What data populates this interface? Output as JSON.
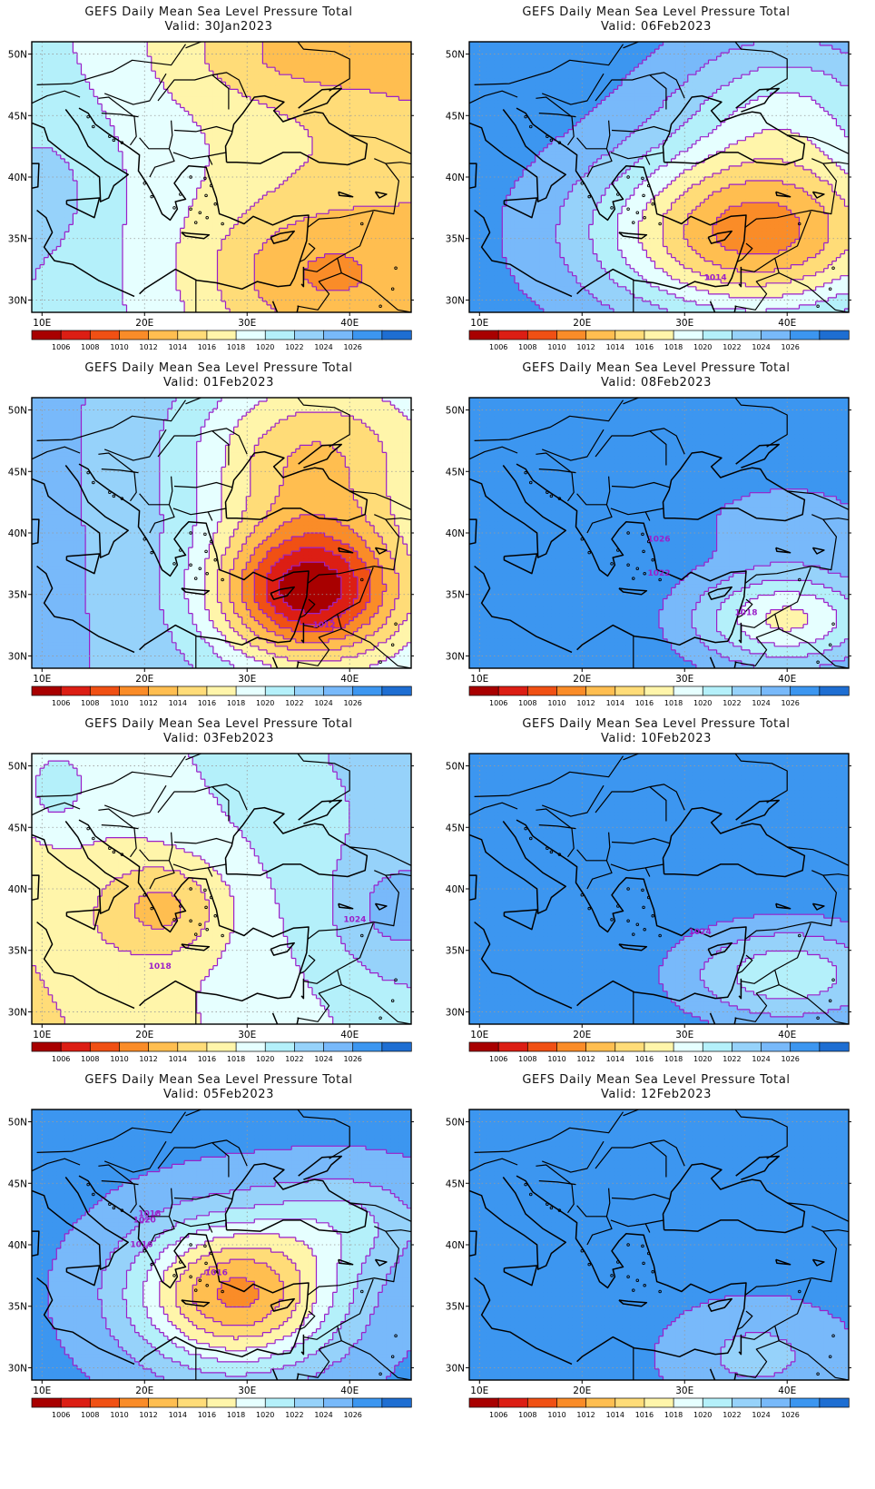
{
  "figure": {
    "title": "GEFS Daily Mean Sea Level Pressure Total",
    "lat_ticks": [
      50,
      45,
      40,
      35,
      30
    ],
    "lat_tick_labels": [
      "50N",
      "45N",
      "40N",
      "35N",
      "30N"
    ],
    "lon_ticks": [
      10,
      20,
      30,
      40
    ],
    "lon_tick_labels": [
      "10E",
      "20E",
      "30E",
      "40E"
    ],
    "lon_range": [
      9,
      46
    ],
    "lat_range": [
      29,
      51
    ],
    "grid": "dotted",
    "colorbar": {
      "boundaries": [
        "1006",
        "1008",
        "1010",
        "1012",
        "1014",
        "1016",
        "1018",
        "1020",
        "1022",
        "1024",
        "1026"
      ],
      "colors": [
        "#a80000",
        "#dc1e14",
        "#f05014",
        "#fa8c28",
        "#ffbe50",
        "#ffdc78",
        "#fff5aa",
        "#e6ffff",
        "#b4f0fa",
        "#96d2fa",
        "#78b9fa",
        "#3c96f0",
        "#1e6ed2"
      ]
    },
    "contour_line_color": "#9b1fc9",
    "coast_color": "#000000"
  },
  "panels": [
    {
      "valid": "Valid: 30Jan2023",
      "contour_labels": [],
      "field": {
        "base": 1018.5,
        "lon_gradient": -0.18,
        "lon_ref": 25,
        "lat_gradient": -0.05,
        "lat_ref": 40,
        "centers": [
          {
            "lon": 36,
            "lat": 32,
            "amp": -5,
            "rx": 11,
            "ry": 6
          },
          {
            "lon": 34,
            "lat": 50,
            "amp": -3,
            "rx": 12,
            "ry": 4
          },
          {
            "lon": 12,
            "lat": 39,
            "amp": 1.5,
            "rx": 5,
            "ry": 6
          }
        ]
      }
    },
    {
      "valid": "Valid: 06Feb2023",
      "contour_labels": [
        {
          "text": "1014",
          "lon": 33.0,
          "lat": 31.8
        }
      ],
      "field": {
        "base": 1027,
        "lon_gradient": 0,
        "lon_ref": 25,
        "lat_gradient": 0,
        "lat_ref": 40,
        "centers": [
          {
            "lon": 37,
            "lat": 35.5,
            "amp": -16,
            "rx": 15,
            "ry": 7
          },
          {
            "lon": 40,
            "lat": 46,
            "amp": -6,
            "rx": 11,
            "ry": 6
          }
        ]
      }
    },
    {
      "valid": "Valid: 01Feb2023",
      "contour_labels": [
        {
          "text": "1012",
          "lon": 37.5,
          "lat": 32.5
        }
      ],
      "field": {
        "base": 1023,
        "lon_gradient": -0.1,
        "lon_ref": 25,
        "lat_gradient": 0,
        "lat_ref": 40,
        "centers": [
          {
            "lon": 36,
            "lat": 35.2,
            "amp": -17,
            "rx": 9,
            "ry": 5.5
          },
          {
            "lon": 36,
            "lat": 46,
            "amp": -8,
            "rx": 11,
            "ry": 7
          }
        ]
      }
    },
    {
      "valid": "Valid: 08Feb2023",
      "contour_labels": [
        {
          "text": "1026",
          "lon": 27.5,
          "lat": 39.5
        },
        {
          "text": "1022",
          "lon": 27.5,
          "lat": 36.7
        },
        {
          "text": "1018",
          "lon": 36.0,
          "lat": 33.5
        }
      ],
      "field": {
        "base": 1027.5,
        "lon_gradient": 0,
        "lon_ref": 25,
        "lat_gradient": 0,
        "lat_ref": 40,
        "centers": [
          {
            "lon": 40,
            "lat": 33,
            "amp": -10,
            "rx": 9,
            "ry": 4
          },
          {
            "lon": 40,
            "lat": 41,
            "amp": -3,
            "rx": 8,
            "ry": 3
          }
        ]
      }
    },
    {
      "valid": "Valid: 03Feb2023",
      "contour_labels": [
        {
          "text": "1018",
          "lon": 21.5,
          "lat": 33.7
        },
        {
          "text": "1024",
          "lon": 40.5,
          "lat": 37.5
        }
      ],
      "field": {
        "base": 1019,
        "lon_gradient": 0.15,
        "lon_ref": 25,
        "lat_gradient": 0.1,
        "lat_ref": 40,
        "centers": [
          {
            "lon": 22,
            "lat": 38.5,
            "amp": -5,
            "rx": 6,
            "ry": 4
          },
          {
            "lon": 44,
            "lat": 38,
            "amp": 3,
            "rx": 6,
            "ry": 5
          },
          {
            "lon": 11,
            "lat": 48,
            "amp": 3,
            "rx": 4,
            "ry": 4
          }
        ]
      }
    },
    {
      "valid": "Valid: 10Feb2023",
      "contour_labels": [
        {
          "text": "1024",
          "lon": 31.5,
          "lat": 36.5
        }
      ],
      "field": {
        "base": 1027.5,
        "lon_gradient": 0,
        "lon_ref": 25,
        "lat_gradient": 0,
        "lat_ref": 40,
        "centers": [
          {
            "lon": 40,
            "lat": 33,
            "amp": -7,
            "rx": 10,
            "ry": 4
          }
        ]
      }
    },
    {
      "valid": "Valid: 05Feb2023",
      "contour_labels": [
        {
          "text": "1016",
          "lon": 27.0,
          "lat": 37.7
        },
        {
          "text": "1018",
          "lon": 20.5,
          "lat": 42.5
        },
        {
          "text": "1020",
          "lon": 20.0,
          "lat": 42.0
        },
        {
          "text": "1016",
          "lon": 19.7,
          "lat": 40.0
        }
      ],
      "field": {
        "base": 1026.5,
        "lon_gradient": 0,
        "lon_ref": 25,
        "lat_gradient": 0,
        "lat_ref": 40,
        "centers": [
          {
            "lon": 29,
            "lat": 36,
            "amp": -15,
            "rx": 10,
            "ry": 6
          },
          {
            "lon": 40,
            "lat": 42,
            "amp": -4,
            "rx": 8,
            "ry": 4
          }
        ]
      }
    },
    {
      "valid": "Valid: 12Feb2023",
      "contour_labels": [],
      "field": {
        "base": 1027.5,
        "lon_gradient": 0,
        "lon_ref": 25,
        "lat_gradient": 0,
        "lat_ref": 40,
        "centers": [
          {
            "lon": 37,
            "lat": 31,
            "amp": -4,
            "rx": 10,
            "ry": 5
          }
        ]
      }
    }
  ]
}
